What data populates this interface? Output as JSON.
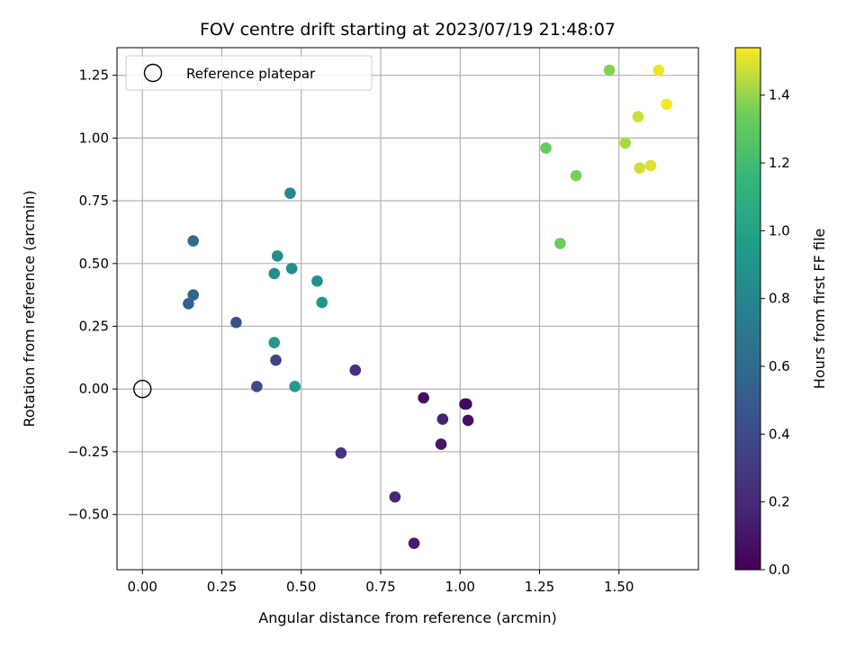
{
  "chart_data": {
    "type": "scatter",
    "title": "FOV centre drift starting at 2023/07/19 21:48:07",
    "xlabel": "Angular distance from reference (arcmin)",
    "ylabel": "Rotation from reference (arcmin)",
    "xlim": [
      -0.08,
      1.75
    ],
    "ylim": [
      -0.72,
      1.36
    ],
    "xticks": [
      0.0,
      0.25,
      0.5,
      0.75,
      1.0,
      1.25,
      1.5
    ],
    "xtick_labels": [
      "0.00",
      "0.25",
      "0.50",
      "0.75",
      "1.00",
      "1.25",
      "1.50"
    ],
    "yticks": [
      -0.5,
      -0.25,
      0.0,
      0.25,
      0.5,
      0.75,
      1.0,
      1.25
    ],
    "ytick_labels": [
      "−0.50",
      "−0.25",
      "0.00",
      "0.25",
      "0.50",
      "0.75",
      "1.00",
      "1.25"
    ],
    "grid": true,
    "legend": {
      "placement": "top-left",
      "entries": [
        "Reference platepar"
      ]
    },
    "reference_point": {
      "x": 0.0,
      "y": 0.0
    },
    "colorbar": {
      "label": "Hours from first FF file",
      "colormap": "viridis",
      "range": [
        0.0,
        1.54
      ],
      "ticks": [
        0.0,
        0.2,
        0.4,
        0.6,
        0.8,
        1.0,
        1.2,
        1.4
      ],
      "tick_labels": [
        "0.0",
        "0.2",
        "0.4",
        "0.6",
        "0.8",
        "1.0",
        "1.2",
        "1.4"
      ]
    },
    "points": [
      {
        "x": 1.02,
        "y": -0.06,
        "c": 0.02
      },
      {
        "x": 1.015,
        "y": -0.06,
        "c": 0.04
      },
      {
        "x": 0.885,
        "y": -0.035,
        "c": 0.06
      },
      {
        "x": 1.025,
        "y": -0.125,
        "c": 0.08
      },
      {
        "x": 0.94,
        "y": -0.22,
        "c": 0.1
      },
      {
        "x": 0.855,
        "y": -0.615,
        "c": 0.13
      },
      {
        "x": 0.945,
        "y": -0.12,
        "c": 0.16
      },
      {
        "x": 0.795,
        "y": -0.43,
        "c": 0.2
      },
      {
        "x": 0.67,
        "y": 0.075,
        "c": 0.23
      },
      {
        "x": 0.625,
        "y": -0.255,
        "c": 0.26
      },
      {
        "x": 0.42,
        "y": 0.115,
        "c": 0.36
      },
      {
        "x": 0.36,
        "y": 0.01,
        "c": 0.4
      },
      {
        "x": 0.295,
        "y": 0.265,
        "c": 0.44
      },
      {
        "x": 0.145,
        "y": 0.34,
        "c": 0.52
      },
      {
        "x": 0.16,
        "y": 0.375,
        "c": 0.56
      },
      {
        "x": 0.16,
        "y": 0.59,
        "c": 0.6
      },
      {
        "x": 0.465,
        "y": 0.78,
        "c": 0.82
      },
      {
        "x": 0.425,
        "y": 0.53,
        "c": 0.84
      },
      {
        "x": 0.47,
        "y": 0.48,
        "c": 0.86
      },
      {
        "x": 0.415,
        "y": 0.46,
        "c": 0.85
      },
      {
        "x": 0.55,
        "y": 0.43,
        "c": 0.88
      },
      {
        "x": 0.565,
        "y": 0.345,
        "c": 0.9
      },
      {
        "x": 0.415,
        "y": 0.185,
        "c": 0.92
      },
      {
        "x": 0.48,
        "y": 0.01,
        "c": 0.94
      },
      {
        "x": 1.27,
        "y": 0.96,
        "c": 1.32
      },
      {
        "x": 1.315,
        "y": 0.58,
        "c": 1.34
      },
      {
        "x": 1.365,
        "y": 0.85,
        "c": 1.36
      },
      {
        "x": 1.47,
        "y": 1.27,
        "c": 1.38
      },
      {
        "x": 1.52,
        "y": 0.98,
        "c": 1.43
      },
      {
        "x": 1.56,
        "y": 1.085,
        "c": 1.47
      },
      {
        "x": 1.565,
        "y": 0.88,
        "c": 1.48
      },
      {
        "x": 1.6,
        "y": 0.89,
        "c": 1.5
      },
      {
        "x": 1.625,
        "y": 1.27,
        "c": 1.52
      },
      {
        "x": 1.65,
        "y": 1.135,
        "c": 1.53
      }
    ]
  }
}
